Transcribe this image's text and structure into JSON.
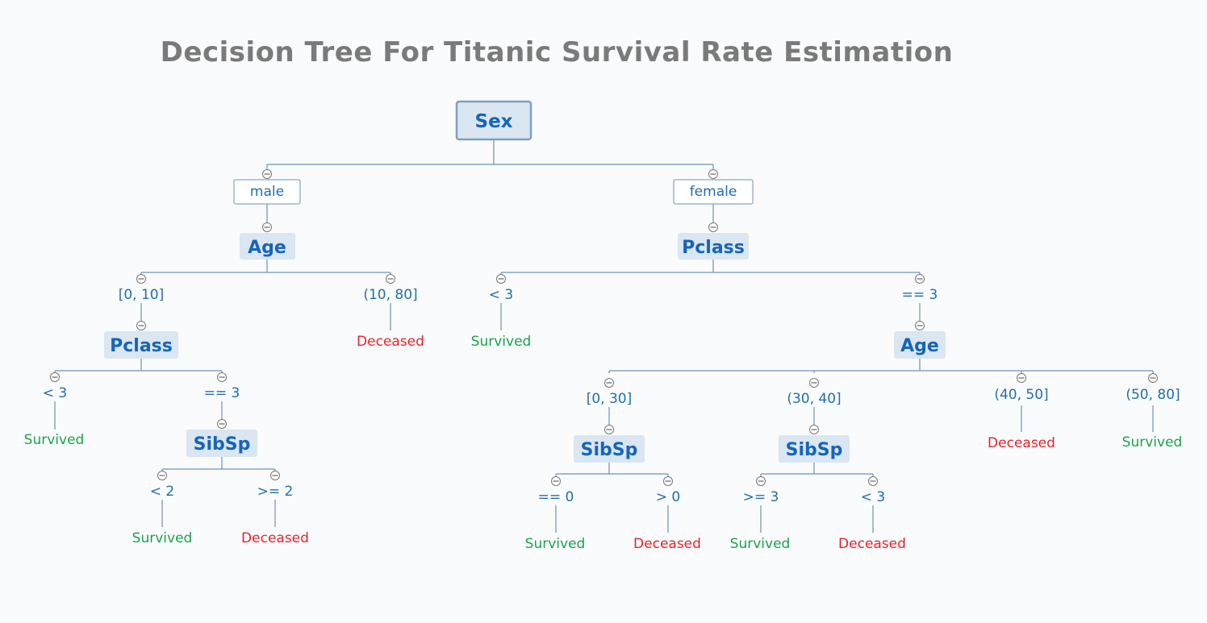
{
  "title": "Decision Tree For Titanic Survival Rate Estimation",
  "colors": {
    "survived": "#1aa34a",
    "deceased": "#e8232a",
    "node_text": "#1565b8",
    "node_fill": "#dae6f2",
    "root_border": "#7f9fbf",
    "line": "#6b93b8"
  },
  "tree": {
    "root": "Sex",
    "branches": [
      {
        "value": "male",
        "attribute": "Age",
        "branches": [
          {
            "value": "[0, 10]",
            "attribute": "Pclass",
            "branches": [
              {
                "value": "< 3",
                "outcome": "Survived"
              },
              {
                "value": "== 3",
                "attribute": "SibSp",
                "branches": [
                  {
                    "value": "< 2",
                    "outcome": "Survived"
                  },
                  {
                    "value": ">= 2",
                    "outcome": "Deceased"
                  }
                ]
              }
            ]
          },
          {
            "value": "(10, 80]",
            "outcome": "Deceased"
          }
        ]
      },
      {
        "value": "female",
        "attribute": "Pclass",
        "branches": [
          {
            "value": "< 3",
            "outcome": "Survived"
          },
          {
            "value": "== 3",
            "attribute": "Age",
            "branches": [
              {
                "value": "[0, 30]",
                "attribute": "SibSp",
                "branches": [
                  {
                    "value": "== 0",
                    "outcome": "Survived"
                  },
                  {
                    "value": "> 0",
                    "outcome": "Deceased"
                  }
                ]
              },
              {
                "value": "(30, 40]",
                "attribute": "SibSp",
                "branches": [
                  {
                    "value": ">= 3",
                    "outcome": "Survived"
                  },
                  {
                    "value": "< 3",
                    "outcome": "Deceased"
                  }
                ]
              },
              {
                "value": "(40, 50]",
                "outcome": "Deceased"
              },
              {
                "value": "(50, 80]",
                "outcome": "Survived"
              }
            ]
          }
        ]
      }
    ]
  }
}
